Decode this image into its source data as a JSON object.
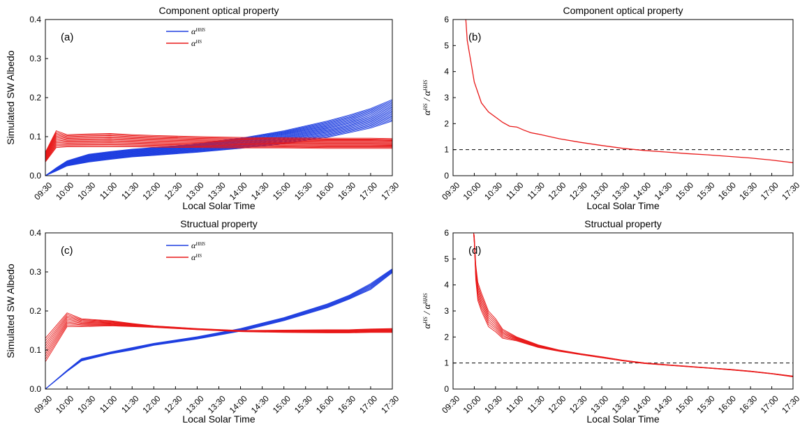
{
  "chart_data": [
    {
      "type": "line",
      "panel_label": "(a)",
      "title": "Component optical property",
      "xlabel": "Local Solar Time",
      "ylabel": "Simulated SW Albedo",
      "x_ticks": [
        "09:30",
        "10:00",
        "10:30",
        "11:00",
        "11:30",
        "12:00",
        "12:30",
        "13:00",
        "13:30",
        "14:00",
        "14:30",
        "15:00",
        "15:30",
        "16:00",
        "16:30",
        "17:00",
        "17:30"
      ],
      "ylim": [
        0,
        0.4
      ],
      "y_ticks": [
        "0.0",
        "0.1",
        "0.2",
        "0.3",
        "0.4"
      ],
      "legend": {
        "placement": "top-center",
        "entries": [
          {
            "base": "α",
            "sup": "HHS",
            "color": "#1f3fe0"
          },
          {
            "base": "α",
            "sup": "HS",
            "color": "#e81818"
          }
        ]
      },
      "x": [
        "09:30",
        "09:45",
        "10:00",
        "10:30",
        "11:00",
        "11:30",
        "12:00",
        "13:00",
        "14:00",
        "15:00",
        "16:00",
        "16:30",
        "17:00",
        "17:30"
      ],
      "series": [
        {
          "color": "#1f3fe0",
          "lines": 20,
          "low": [
            0.0,
            0.012,
            0.025,
            0.035,
            0.042,
            0.048,
            0.052,
            0.06,
            0.07,
            0.082,
            0.098,
            0.11,
            0.122,
            0.14
          ],
          "high": [
            0.0,
            0.02,
            0.038,
            0.055,
            0.062,
            0.068,
            0.072,
            0.082,
            0.096,
            0.115,
            0.14,
            0.155,
            0.172,
            0.195
          ]
        },
        {
          "color": "#e81818",
          "lines": 14,
          "low": [
            0.035,
            0.072,
            0.074,
            0.074,
            0.074,
            0.074,
            0.073,
            0.072,
            0.071,
            0.071,
            0.07,
            0.07,
            0.07,
            0.07
          ],
          "high": [
            0.06,
            0.115,
            0.105,
            0.107,
            0.108,
            0.105,
            0.103,
            0.1,
            0.098,
            0.097,
            0.096,
            0.096,
            0.096,
            0.095
          ]
        }
      ]
    },
    {
      "type": "line",
      "panel_label": "(b)",
      "title": "Component optical property",
      "xlabel": "Local Solar Time",
      "ylabel": {
        "a": "α",
        "a_sup": "HS",
        "sep": "/",
        "b": "α",
        "b_sup": "HHS"
      },
      "x_ticks": [
        "09:30",
        "10:00",
        "10:30",
        "11:00",
        "11:30",
        "12:00",
        "12:30",
        "13:00",
        "13:30",
        "14:00",
        "14:30",
        "15:00",
        "15:30",
        "16:00",
        "16:30",
        "17:00",
        "17:30"
      ],
      "ylim": [
        0,
        6
      ],
      "y_ticks": [
        "0",
        "1",
        "2",
        "3",
        "4",
        "5",
        "6"
      ],
      "reference_line": 1,
      "x": [
        "09:48",
        "09:50",
        "09:55",
        "10:00",
        "10:10",
        "10:20",
        "10:30",
        "10:40",
        "10:50",
        "11:00",
        "11:10",
        "11:20",
        "11:30",
        "12:00",
        "12:30",
        "13:00",
        "13:30",
        "14:00",
        "14:30",
        "15:00",
        "15:30",
        "16:00",
        "16:30",
        "17:00",
        "17:30"
      ],
      "series": [
        {
          "color": "#e81818",
          "lines": 1,
          "low": [
            6.0,
            5.2,
            4.4,
            3.6,
            2.8,
            2.45,
            2.25,
            2.05,
            1.9,
            1.87,
            1.75,
            1.65,
            1.6,
            1.42,
            1.28,
            1.16,
            1.05,
            0.97,
            0.91,
            0.85,
            0.8,
            0.74,
            0.68,
            0.6,
            0.5
          ],
          "high": [
            6.0,
            5.2,
            4.4,
            3.6,
            2.8,
            2.45,
            2.25,
            2.05,
            1.9,
            1.87,
            1.75,
            1.65,
            1.6,
            1.42,
            1.28,
            1.16,
            1.05,
            0.97,
            0.91,
            0.85,
            0.8,
            0.74,
            0.68,
            0.6,
            0.5
          ]
        }
      ]
    },
    {
      "type": "line",
      "panel_label": "(c)",
      "title": "Structual property",
      "xlabel": "Local Solar Time",
      "ylabel": "Simulated SW Albedo",
      "x_ticks": [
        "09:30",
        "10:00",
        "10:30",
        "11:00",
        "11:30",
        "12:00",
        "12:30",
        "13:00",
        "13:30",
        "14:00",
        "14:30",
        "15:00",
        "15:30",
        "16:00",
        "16:30",
        "17:00",
        "17:30"
      ],
      "ylim": [
        0,
        0.4
      ],
      "y_ticks": [
        "0.0",
        "0.1",
        "0.2",
        "0.3",
        "0.4"
      ],
      "legend": {
        "placement": "top-center",
        "entries": [
          {
            "base": "α",
            "sup": "HHS",
            "color": "#1f3fe0"
          },
          {
            "base": "α",
            "sup": "HS",
            "color": "#e81818"
          }
        ]
      },
      "x": [
        "09:30",
        "10:00",
        "10:20",
        "11:00",
        "11:30",
        "12:00",
        "13:00",
        "14:00",
        "15:00",
        "16:00",
        "16:30",
        "17:00",
        "17:30"
      ],
      "series": [
        {
          "color": "#1f3fe0",
          "lines": 8,
          "low": [
            0.0,
            0.045,
            0.072,
            0.09,
            0.1,
            0.112,
            0.128,
            0.148,
            0.175,
            0.208,
            0.23,
            0.255,
            0.298
          ],
          "high": [
            0.0,
            0.048,
            0.078,
            0.095,
            0.106,
            0.117,
            0.134,
            0.155,
            0.183,
            0.218,
            0.24,
            0.27,
            0.308
          ]
        },
        {
          "color": "#e81818",
          "lines": 10,
          "low": [
            0.07,
            0.16,
            0.16,
            0.162,
            0.16,
            0.158,
            0.152,
            0.147,
            0.145,
            0.144,
            0.144,
            0.145,
            0.145
          ],
          "high": [
            0.13,
            0.195,
            0.18,
            0.175,
            0.168,
            0.162,
            0.155,
            0.15,
            0.151,
            0.152,
            0.152,
            0.154,
            0.155
          ]
        }
      ]
    },
    {
      "type": "line",
      "panel_label": "(d)",
      "title": "Structual property",
      "xlabel": "Local Solar Time",
      "ylabel": {
        "a": "α",
        "a_sup": "HS",
        "sep": "/",
        "b": "α",
        "b_sup": "HHS"
      },
      "x_ticks": [
        "09:30",
        "10:00",
        "10:30",
        "11:00",
        "11:30",
        "12:00",
        "12:30",
        "13:00",
        "13:30",
        "14:00",
        "14:30",
        "15:00",
        "15:30",
        "16:00",
        "16:30",
        "17:00",
        "17:30"
      ],
      "ylim": [
        0,
        6
      ],
      "y_ticks": [
        "0",
        "1",
        "2",
        "3",
        "4",
        "5",
        "6"
      ],
      "reference_line": 1,
      "x": [
        "09:59",
        "10:00",
        "10:02",
        "10:05",
        "10:10",
        "10:20",
        "10:30",
        "10:40",
        "11:00",
        "11:30",
        "12:00",
        "12:30",
        "13:00",
        "13:30",
        "14:00",
        "14:30",
        "15:00",
        "15:30",
        "16:00",
        "16:30",
        "17:00",
        "17:30"
      ],
      "series": [
        {
          "color": "#e81818",
          "lines": 8,
          "low": [
            6.0,
            5.6,
            4.2,
            3.4,
            3.0,
            2.4,
            2.2,
            1.95,
            1.85,
            1.6,
            1.45,
            1.32,
            1.2,
            1.08,
            0.98,
            0.92,
            0.86,
            0.8,
            0.74,
            0.67,
            0.58,
            0.47
          ],
          "high": [
            6.0,
            5.9,
            4.8,
            4.1,
            3.7,
            3.0,
            2.7,
            2.3,
            2.0,
            1.7,
            1.5,
            1.36,
            1.24,
            1.11,
            1.01,
            0.94,
            0.88,
            0.82,
            0.76,
            0.69,
            0.6,
            0.5
          ]
        }
      ]
    }
  ]
}
